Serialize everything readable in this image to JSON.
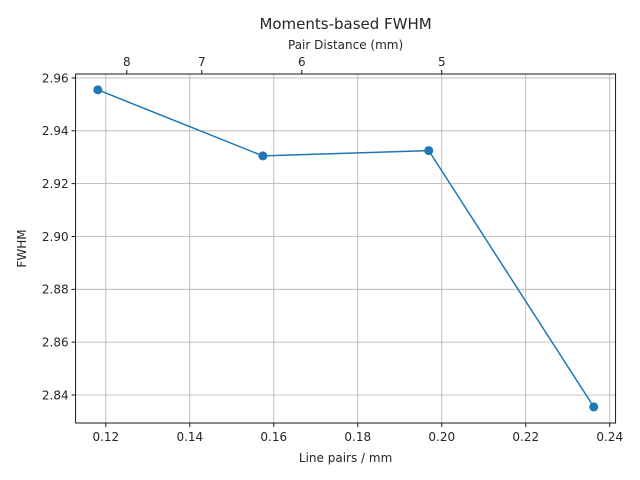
{
  "chart_data": {
    "type": "line",
    "title": "Moments-based FWHM",
    "xlabel": "Line pairs / mm",
    "ylabel": "FWHM",
    "secondary_xlabel": "Pair Distance (mm)",
    "xlim": [
      0.1128,
      0.2414
    ],
    "ylim": [
      2.8294,
      2.9615
    ],
    "x_ticks": [
      0.12,
      0.14,
      0.16,
      0.18,
      0.2,
      0.22,
      0.24
    ],
    "x_tick_labels": [
      "0.12",
      "0.14",
      "0.16",
      "0.18",
      "0.20",
      "0.22",
      "0.24"
    ],
    "y_ticks": [
      2.84,
      2.86,
      2.88,
      2.9,
      2.92,
      2.94,
      2.96
    ],
    "y_tick_labels": [
      "2.84",
      "2.86",
      "2.88",
      "2.90",
      "2.92",
      "2.94",
      "2.96"
    ],
    "secondary_x_ticks": [
      8,
      7,
      6,
      5
    ],
    "secondary_x_tick_labels": [
      "8",
      "7",
      "6",
      "5"
    ],
    "grid": true,
    "color": "#1f77b4",
    "series": [
      {
        "x": [
          0.1181,
          0.1574,
          0.1969,
          0.2362
        ],
        "y": [
          2.9555,
          2.9305,
          2.9325,
          2.8355
        ]
      }
    ]
  }
}
